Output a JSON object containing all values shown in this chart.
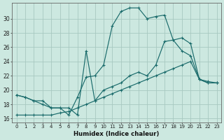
{
  "xlabel": "Humidex (Indice chaleur)",
  "bg_color": "#cce8e0",
  "grid_color": "#a8c8c0",
  "line_color": "#1a6b6b",
  "xlim": [
    -0.5,
    23.5
  ],
  "ylim": [
    15.5,
    32.2
  ],
  "xticks": [
    0,
    1,
    2,
    3,
    4,
    5,
    6,
    7,
    8,
    9,
    10,
    11,
    12,
    13,
    14,
    15,
    16,
    17,
    18,
    19,
    20,
    21,
    22,
    23
  ],
  "yticks": [
    16,
    18,
    20,
    22,
    24,
    26,
    28,
    30
  ],
  "curve1_x": [
    0,
    1,
    2,
    3,
    4,
    5,
    6,
    7,
    8,
    9,
    10,
    11,
    12,
    13,
    14,
    15,
    16,
    17,
    18,
    19,
    20,
    21,
    22,
    23
  ],
  "curve1_y": [
    19.3,
    19.0,
    18.5,
    18.5,
    17.5,
    17.5,
    16.5,
    19.0,
    21.8,
    22.0,
    23.5,
    29.0,
    31.0,
    31.5,
    31.5,
    30.0,
    30.3,
    30.5,
    27.0,
    27.3,
    26.5,
    21.5,
    21.0,
    21.0
  ],
  "curve2_x": [
    0,
    1,
    2,
    3,
    4,
    5,
    6,
    7,
    8,
    9,
    10,
    11,
    12,
    13,
    14,
    15,
    16,
    17,
    18,
    19,
    20,
    21,
    22,
    23
  ],
  "curve2_y": [
    16.5,
    16.5,
    16.5,
    16.5,
    16.5,
    16.8,
    17.0,
    17.5,
    18.0,
    18.5,
    19.0,
    19.5,
    20.0,
    20.5,
    21.0,
    21.5,
    22.0,
    22.5,
    23.0,
    23.5,
    24.0,
    21.5,
    21.2,
    21.0
  ],
  "curve3_x": [
    0,
    1,
    2,
    3,
    4,
    5,
    6,
    7,
    8,
    9,
    10,
    11,
    12,
    13,
    14,
    15,
    16,
    17,
    18,
    19,
    20,
    21,
    22,
    23
  ],
  "curve3_y": [
    19.3,
    19.0,
    18.5,
    18.0,
    17.5,
    17.5,
    17.5,
    16.5,
    25.5,
    18.5,
    20.0,
    20.5,
    21.0,
    22.0,
    22.5,
    22.0,
    23.5,
    26.8,
    27.0,
    25.5,
    24.8,
    21.5,
    21.0,
    21.0
  ]
}
